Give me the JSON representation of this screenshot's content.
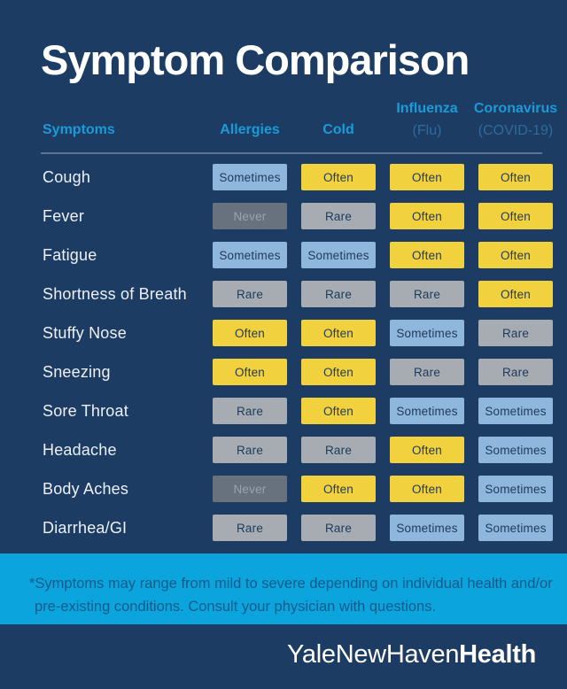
{
  "page": {
    "title": "Symptom Comparison",
    "background_color": "#1C3C64",
    "accent_blue": "#1A9BD7",
    "muted_blue": "#2E6B9C",
    "divider_color": "#5E7291"
  },
  "table": {
    "headers": [
      {
        "line1": "Symptoms",
        "line2": ""
      },
      {
        "line1": "Allergies",
        "line2": ""
      },
      {
        "line1": "Cold",
        "line2": ""
      },
      {
        "line1": "Influenza",
        "line2": "(Flu)"
      },
      {
        "line1": "Coronavirus",
        "line2": "(COVID-19)"
      }
    ],
    "rows": [
      {
        "symptom": "Cough",
        "values": [
          "Sometimes",
          "Often",
          "Often",
          "Often"
        ]
      },
      {
        "symptom": "Fever",
        "values": [
          "Never",
          "Rare",
          "Often",
          "Often"
        ]
      },
      {
        "symptom": "Fatigue",
        "values": [
          "Sometimes",
          "Sometimes",
          "Often",
          "Often"
        ]
      },
      {
        "symptom": "Shortness of Breath",
        "values": [
          "Rare",
          "Rare",
          "Rare",
          "Often"
        ]
      },
      {
        "symptom": "Stuffy Nose",
        "values": [
          "Often",
          "Often",
          "Sometimes",
          "Rare"
        ]
      },
      {
        "symptom": "Sneezing",
        "values": [
          "Often",
          "Often",
          "Rare",
          "Rare"
        ]
      },
      {
        "symptom": "Sore Throat",
        "values": [
          "Rare",
          "Often",
          "Sometimes",
          "Sometimes"
        ]
      },
      {
        "symptom": "Headache",
        "values": [
          "Rare",
          "Rare",
          "Often",
          "Sometimes"
        ]
      },
      {
        "symptom": "Body Aches",
        "values": [
          "Never",
          "Often",
          "Often",
          "Sometimes"
        ]
      },
      {
        "symptom": "Diarrhea/GI",
        "values": [
          "Rare",
          "Rare",
          "Sometimes",
          "Sometimes"
        ]
      }
    ]
  },
  "badge_styles": {
    "Often": {
      "bg": "#F2D13E",
      "text": "#1F3A57"
    },
    "Sometimes": {
      "bg": "#8FB7DE",
      "text": "#1F3A57"
    },
    "Rare": {
      "bg": "#A7ACB2",
      "text": "#1F3A57"
    },
    "Never": {
      "bg": "#67727E",
      "text": "#99A3AD"
    }
  },
  "footnote": {
    "band_color": "#0BA4DC",
    "text_color": "#0E5C8C",
    "lines": [
      "*Symptoms may range from mild to severe depending on individual health and/or",
      "pre-existing conditions. Consult your physician with questions."
    ]
  },
  "logo": {
    "part1": "YaleNewHaven",
    "part2": "Health"
  },
  "chart_data": {
    "type": "table",
    "title": "Symptom Comparison",
    "columns": [
      "Symptoms",
      "Allergies",
      "Cold",
      "Influenza (Flu)",
      "Coronavirus (COVID-19)"
    ],
    "rows": [
      [
        "Cough",
        "Sometimes",
        "Often",
        "Often",
        "Often"
      ],
      [
        "Fever",
        "Never",
        "Rare",
        "Often",
        "Often"
      ],
      [
        "Fatigue",
        "Sometimes",
        "Sometimes",
        "Often",
        "Often"
      ],
      [
        "Shortness of Breath",
        "Rare",
        "Rare",
        "Rare",
        "Often"
      ],
      [
        "Stuffy Nose",
        "Often",
        "Often",
        "Sometimes",
        "Rare"
      ],
      [
        "Sneezing",
        "Often",
        "Often",
        "Rare",
        "Rare"
      ],
      [
        "Sore Throat",
        "Rare",
        "Often",
        "Sometimes",
        "Sometimes"
      ],
      [
        "Headache",
        "Rare",
        "Rare",
        "Often",
        "Sometimes"
      ],
      [
        "Body Aches",
        "Never",
        "Often",
        "Often",
        "Sometimes"
      ],
      [
        "Diarrhea/GI",
        "Rare",
        "Rare",
        "Sometimes",
        "Sometimes"
      ]
    ],
    "value_levels": [
      "Never",
      "Rare",
      "Sometimes",
      "Often"
    ],
    "legend_colors": {
      "Often": "#F2D13E",
      "Sometimes": "#8FB7DE",
      "Rare": "#A7ACB2",
      "Never": "#67727E"
    },
    "footnote": "*Symptoms may range from mild to severe depending on individual health and/or pre-existing conditions. Consult your physician with questions.",
    "source_logo": "YaleNewHavenHealth"
  }
}
